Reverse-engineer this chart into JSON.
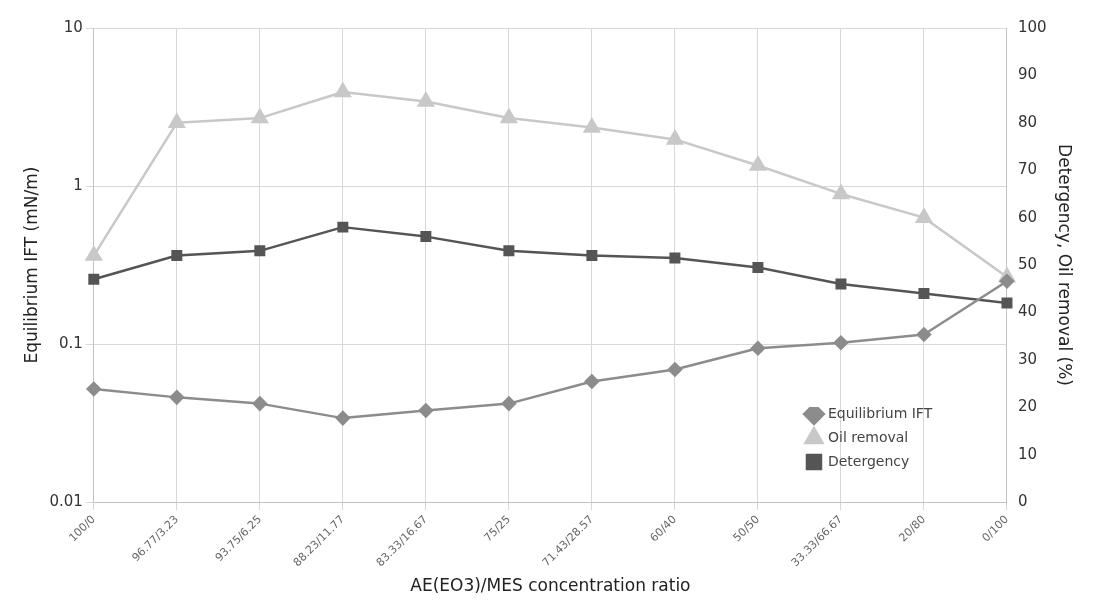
{
  "chart_data": {
    "type": "line",
    "xlabel": "AE(EO3)/MES concentration ratio",
    "ylabel": "Equilibrium IFT (mN/m)",
    "y2label": "Detergency, Oil removal (%)",
    "categories": [
      "100/0",
      "96.77/3.23",
      "93.75/6.25",
      "88.23/11.77",
      "83.33/16.67",
      "75/25",
      "71.43/28.57",
      "60/40",
      "50/50",
      "33.33/66.67",
      "20/80",
      "0/100"
    ],
    "series": [
      {
        "name": "Equilibrium IFT",
        "color": "#8c8c8c",
        "marker": "diamond",
        "values": [
          0.052,
          0.046,
          0.042,
          0.034,
          0.038,
          0.042,
          0.058,
          0.069,
          0.094,
          0.102,
          0.115,
          0.25
        ]
      },
      {
        "name": "Oil removal",
        "color": "#c8c8c8",
        "marker": "triangle",
        "axis": "y2",
        "values": [
          52,
          80,
          81,
          86.5,
          84.5,
          81,
          79,
          76.5,
          71,
          65,
          60,
          47.5
        ]
      },
      {
        "name": "Detergency",
        "color": "#555555",
        "marker": "square",
        "axis": "y2",
        "values": [
          47,
          52,
          53,
          58,
          56,
          53,
          52,
          51.5,
          49.5,
          46,
          44,
          42
        ]
      }
    ],
    "log": "y",
    "ylim": [
      0.01,
      10
    ],
    "yticks": [
      0.01,
      0.1,
      1,
      10
    ],
    "y2lim": [
      0,
      100
    ],
    "y2ticks": [
      0,
      10,
      20,
      30,
      40,
      50,
      60,
      70,
      80,
      90,
      100
    ],
    "grid": true,
    "legend": "bottom right",
    "line_style": "solid"
  }
}
